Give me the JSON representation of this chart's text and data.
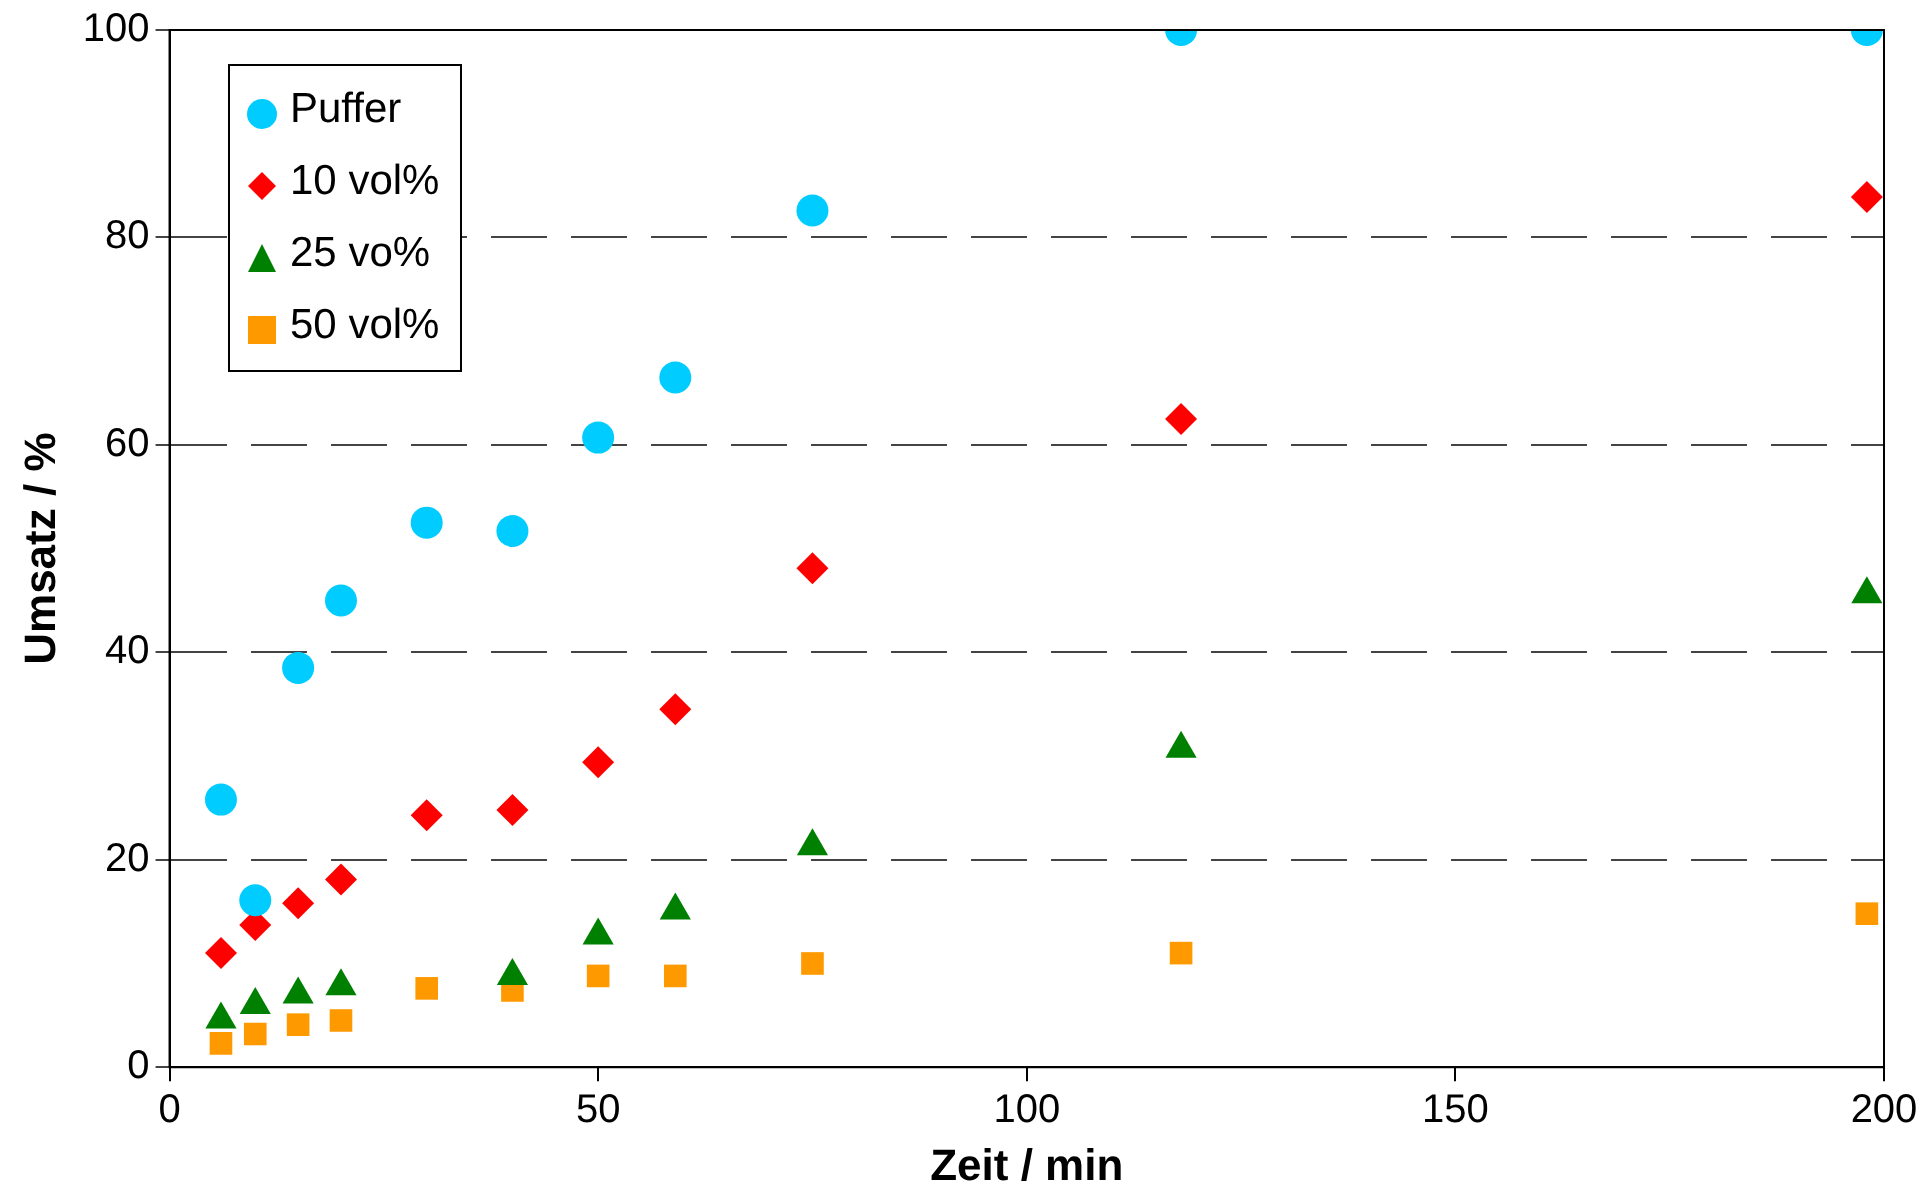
{
  "chart_data": {
    "type": "scatter",
    "xlabel": "Zeit / min",
    "ylabel": "Umsatz / %",
    "x": [
      6,
      10,
      15,
      20,
      30,
      40,
      50,
      59,
      75,
      118,
      198
    ],
    "series": [
      {
        "name": "Puffer",
        "color": "#00ccff",
        "marker": "circle",
        "values": [
          25.8,
          16.1,
          38.5,
          45,
          52.5,
          51.7,
          60.7,
          66.5,
          82.6,
          100,
          100
        ]
      },
      {
        "name": "10 vol%",
        "color": "#ff0000",
        "marker": "diamond",
        "values": [
          11.0,
          13.7,
          15.8,
          18.1,
          24.3,
          24.8,
          29.4,
          34.5,
          48.1,
          62.5,
          83.9
        ]
      },
      {
        "name": "25 vo%",
        "color": "#008000",
        "marker": "triangle",
        "values": [
          4.6,
          6.0,
          7.0,
          7.8,
          null,
          8.8,
          12.7,
          15.1,
          21.3,
          30.7,
          45.6
        ]
      },
      {
        "name": "50 vol%",
        "color": "#ff9900",
        "marker": "square",
        "values": [
          2.3,
          3.2,
          4.1,
          4.5,
          7.6,
          7.4,
          8.8,
          8.8,
          10.0,
          11.0,
          14.8
        ]
      }
    ],
    "xlim": [
      0,
      200
    ],
    "xticks": [
      0,
      50,
      100,
      150,
      200
    ],
    "ylim": [
      0,
      100
    ],
    "yticks": [
      0,
      20,
      40,
      60,
      80,
      100
    ],
    "grid": "y",
    "legend": "top left"
  }
}
